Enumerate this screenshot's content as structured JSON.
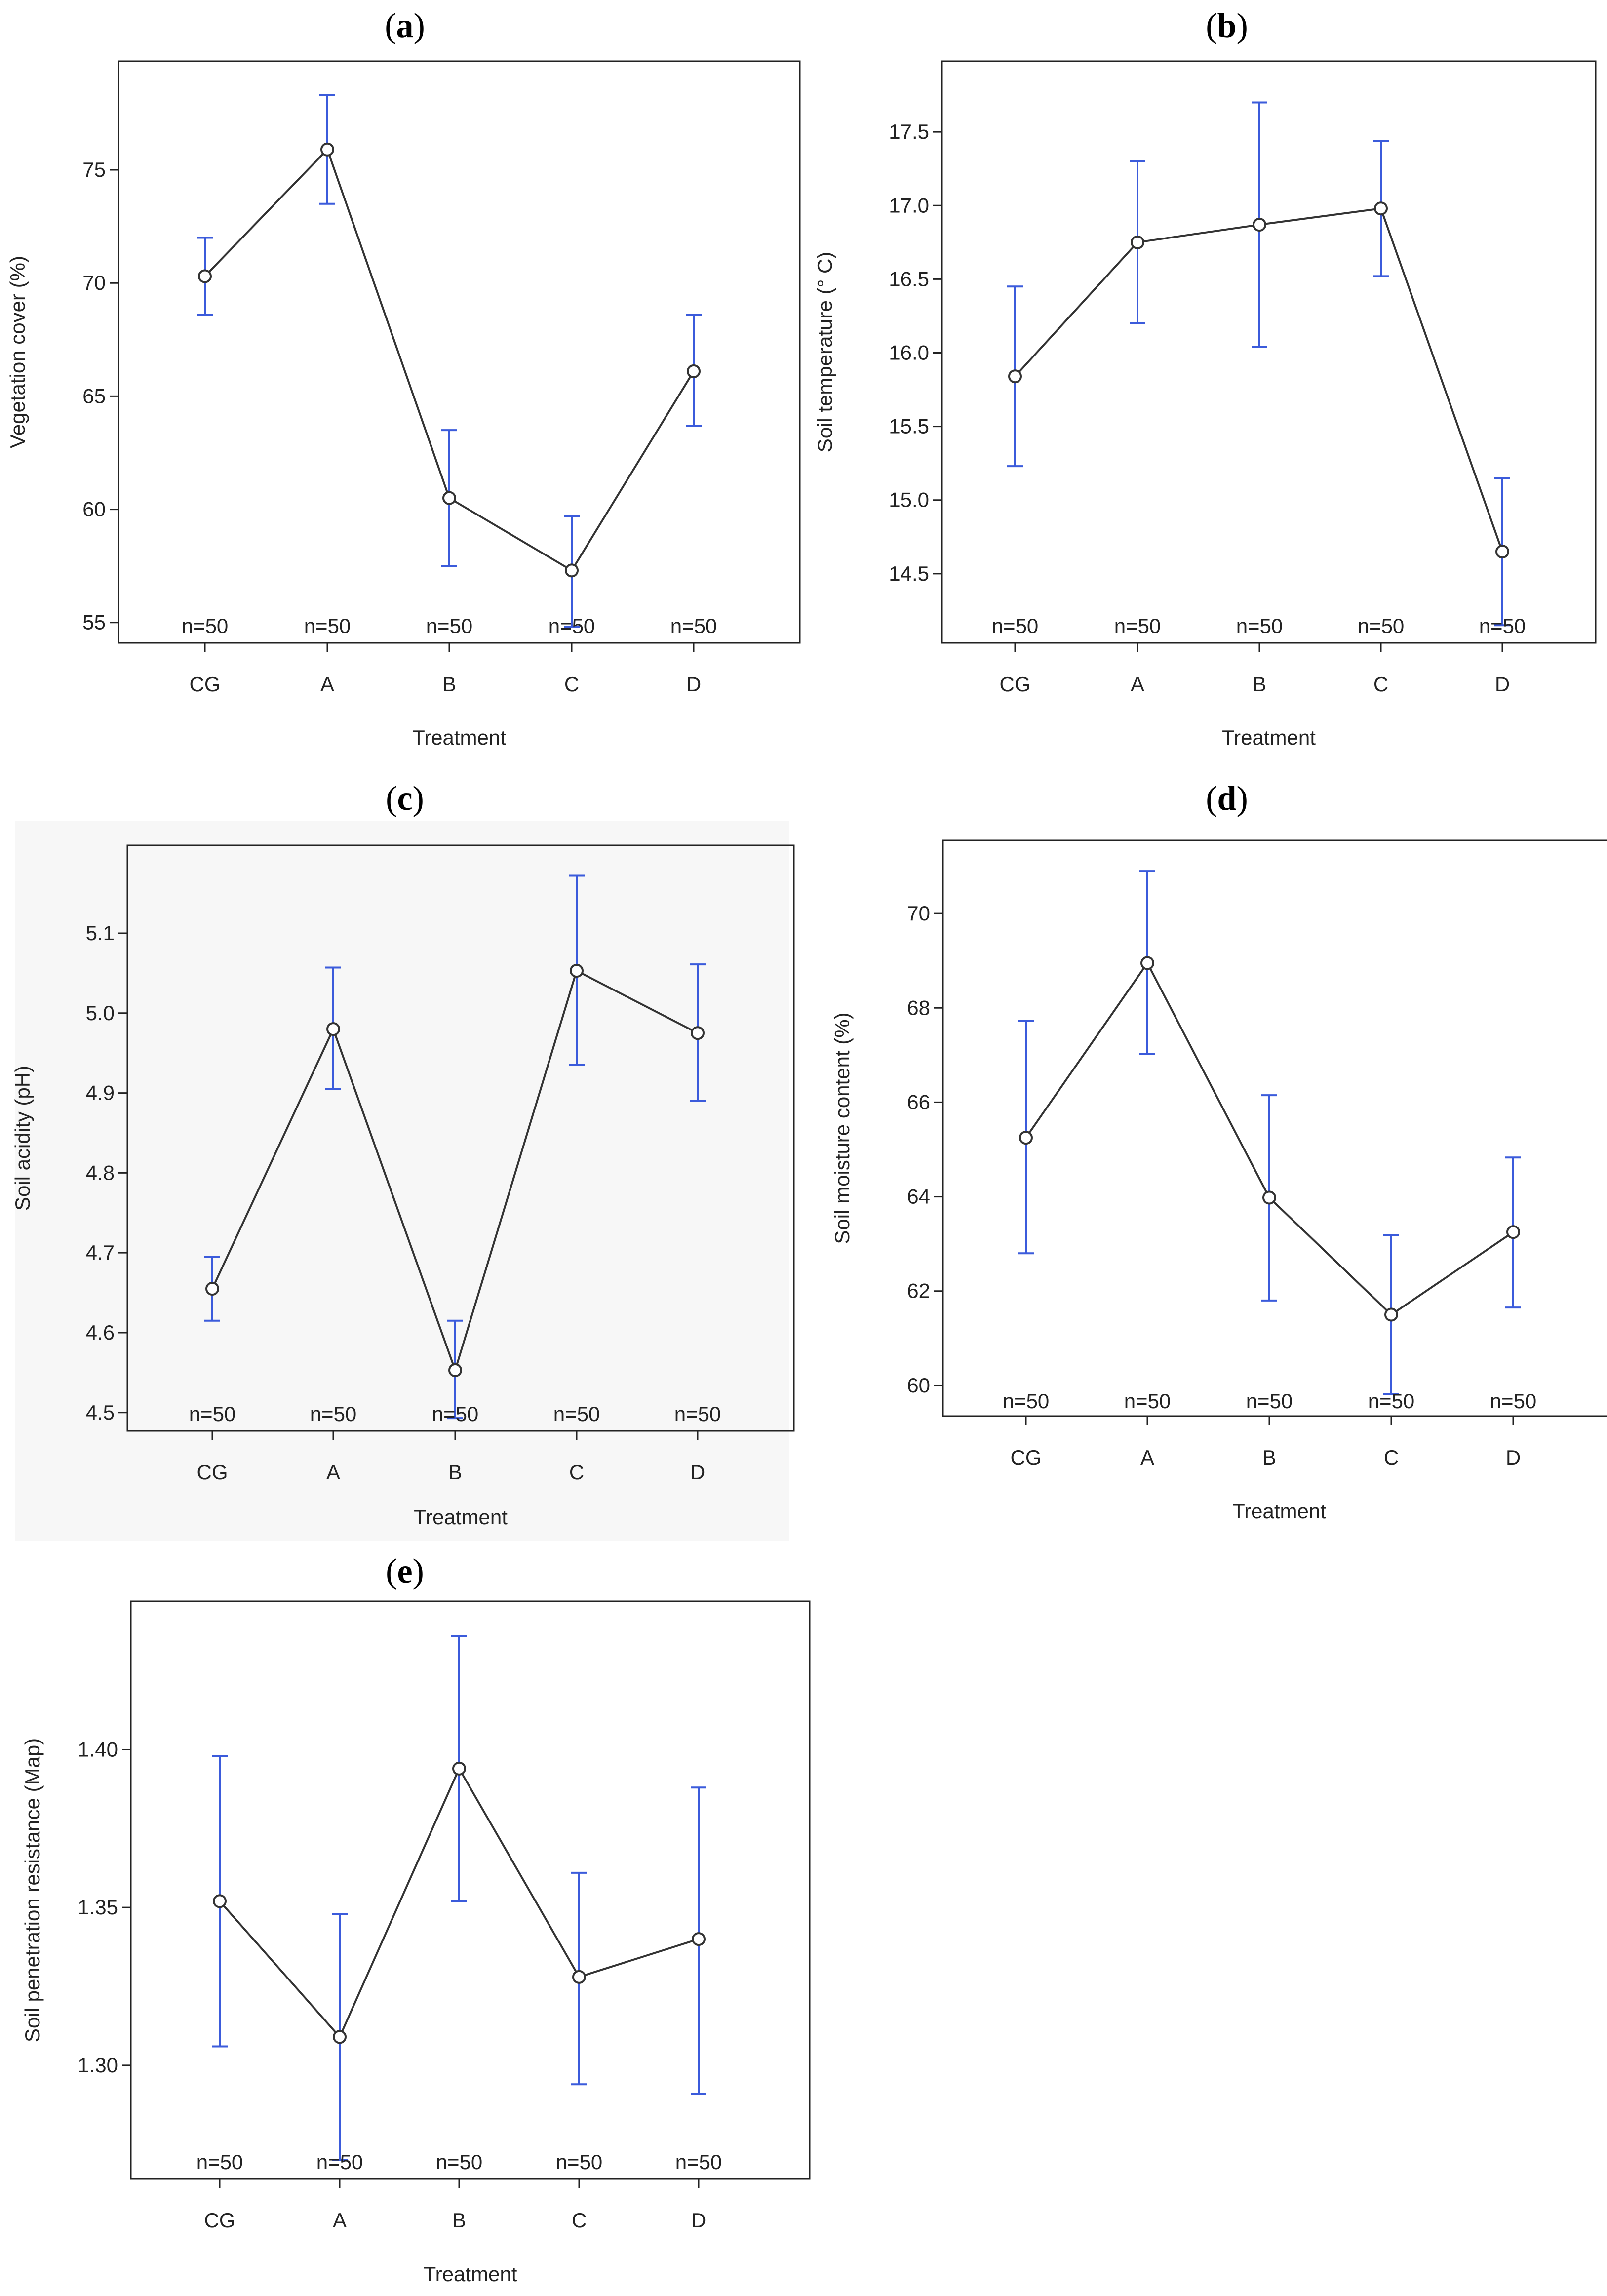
{
  "figure": {
    "colors": {
      "errorbar": "#3b5bdb",
      "line": "#333333",
      "frame": "#222222",
      "panel_bg_c": "#f7f7f7"
    }
  },
  "chart_data": [
    {
      "id": "a",
      "panel_label": "a",
      "type": "line",
      "xlabel": "Treatment",
      "ylabel": "Vegetation cover (%)",
      "categories": [
        "CG",
        "A",
        "B",
        "C",
        "D"
      ],
      "values": [
        70.3,
        75.9,
        60.5,
        57.3,
        66.1
      ],
      "error_low": [
        68.6,
        73.5,
        57.5,
        54.8,
        63.7
      ],
      "error_high": [
        72.0,
        78.3,
        63.5,
        59.7,
        68.6
      ],
      "n_labels": [
        "n=50",
        "n=50",
        "n=50",
        "n=50",
        "n=50"
      ],
      "yticks": [
        55,
        60,
        65,
        70,
        75
      ],
      "ytick_labels": [
        "55",
        "60",
        "65",
        "70",
        "75"
      ],
      "ylim": [
        54.1,
        79.8
      ]
    },
    {
      "id": "b",
      "panel_label": "b",
      "type": "line",
      "xlabel": "Treatment",
      "ylabel": "Soil temperature (° C)",
      "categories": [
        "CG",
        "A",
        "B",
        "C",
        "D"
      ],
      "values": [
        15.84,
        16.75,
        16.87,
        16.98,
        14.65
      ],
      "error_low": [
        15.23,
        16.2,
        16.04,
        16.52,
        14.15
      ],
      "error_high": [
        16.45,
        17.3,
        17.7,
        17.44,
        15.15
      ],
      "n_labels": [
        "n=50",
        "n=50",
        "n=50",
        "n=50",
        "n=50"
      ],
      "yticks": [
        14.5,
        15.0,
        15.5,
        16.0,
        16.5,
        17.0,
        17.5
      ],
      "ytick_labels": [
        "14.5",
        "15.0",
        "15.5",
        "16.0",
        "16.5",
        "17.0",
        "17.5"
      ],
      "ylim": [
        14.03,
        17.98
      ]
    },
    {
      "id": "c",
      "panel_label": "c",
      "type": "line",
      "xlabel": "Treatment",
      "ylabel": "Soil acidity (pH)",
      "categories": [
        "CG",
        "A",
        "B",
        "C",
        "D"
      ],
      "values": [
        4.655,
        4.98,
        4.553,
        5.053,
        4.975
      ],
      "error_low": [
        4.615,
        4.905,
        4.493,
        4.935,
        4.89
      ],
      "error_high": [
        4.695,
        5.057,
        4.615,
        5.172,
        5.061
      ],
      "n_labels": [
        "n=50",
        "n=50",
        "n=50",
        "n=50",
        "n=50"
      ],
      "yticks": [
        4.5,
        4.6,
        4.7,
        4.8,
        4.9,
        5.0,
        5.1
      ],
      "ytick_labels": [
        "4.5",
        "4.6",
        "4.7",
        "4.8",
        "4.9",
        "5.0",
        "5.1"
      ],
      "ylim": [
        4.477,
        5.21
      ]
    },
    {
      "id": "d",
      "panel_label": "d",
      "type": "line",
      "xlabel": "Treatment",
      "ylabel": "Soil moisture  content (%)",
      "categories": [
        "CG",
        "A",
        "B",
        "C",
        "D"
      ],
      "values": [
        65.25,
        68.95,
        63.98,
        61.5,
        63.25
      ],
      "error_low": [
        62.8,
        67.03,
        61.8,
        59.82,
        61.65
      ],
      "error_high": [
        67.72,
        70.9,
        66.15,
        63.18,
        64.83
      ],
      "n_labels": [
        "n=50",
        "n=50",
        "n=50",
        "n=50",
        "n=50"
      ],
      "yticks": [
        60,
        62,
        64,
        66,
        68,
        70
      ],
      "ytick_labels": [
        "60",
        "62",
        "64",
        "66",
        "68",
        "70"
      ],
      "ylim": [
        59.35,
        71.55
      ]
    },
    {
      "id": "e",
      "panel_label": "e",
      "type": "line",
      "xlabel": "Treatment",
      "ylabel": "Soil penetration resistance (Map)",
      "categories": [
        "CG",
        "A",
        "B",
        "C",
        "D"
      ],
      "values": [
        1.352,
        1.309,
        1.394,
        1.328,
        1.34
      ],
      "error_low": [
        1.306,
        1.27,
        1.352,
        1.294,
        1.291
      ],
      "error_high": [
        1.398,
        1.348,
        1.436,
        1.361,
        1.388
      ],
      "n_labels": [
        "n=50",
        "n=50",
        "n=50",
        "n=50",
        "n=50"
      ],
      "yticks": [
        1.3,
        1.35,
        1.4
      ],
      "ytick_labels": [
        "1.30",
        "1.35",
        "1.40"
      ],
      "ylim": [
        1.264,
        1.447
      ]
    }
  ]
}
